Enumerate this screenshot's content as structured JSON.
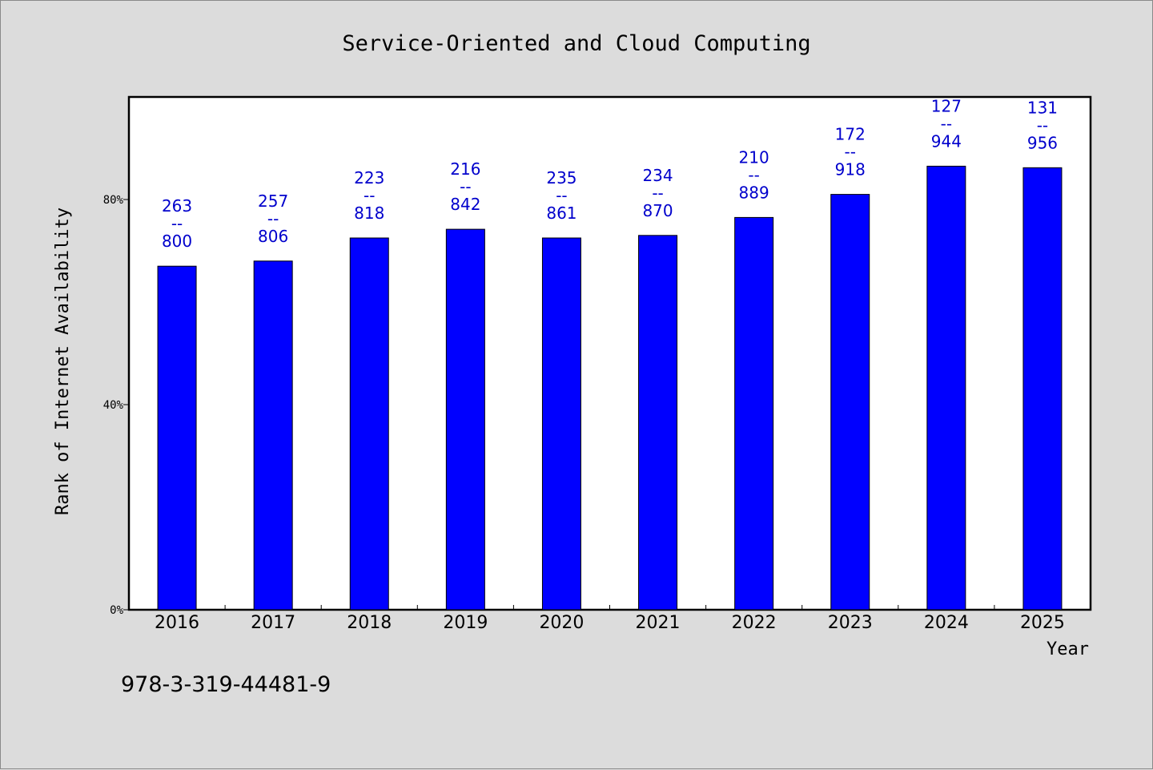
{
  "chart_data": {
    "type": "bar",
    "title": "Service-Oriented and Cloud Computing",
    "xlabel": "Year",
    "ylabel": "Rank of Internet Availability",
    "categories": [
      "2016",
      "2017",
      "2018",
      "2019",
      "2020",
      "2021",
      "2022",
      "2023",
      "2024",
      "2025"
    ],
    "values": [
      67,
      68,
      72.5,
      74.2,
      72.5,
      73,
      76.5,
      81,
      86.5,
      86.2
    ],
    "value_unit": "%",
    "ylim": [
      0,
      100
    ],
    "yticks": [
      {
        "value": 0,
        "label": "0%"
      },
      {
        "value": 40,
        "label": "40%"
      },
      {
        "value": 80,
        "label": "80%"
      }
    ],
    "data_labels": [
      {
        "top": "263",
        "sep": "--",
        "bottom": "800"
      },
      {
        "top": "257",
        "sep": "--",
        "bottom": "806"
      },
      {
        "top": "223",
        "sep": "--",
        "bottom": "818"
      },
      {
        "top": "216",
        "sep": "--",
        "bottom": "842"
      },
      {
        "top": "235",
        "sep": "--",
        "bottom": "861"
      },
      {
        "top": "234",
        "sep": "--",
        "bottom": "870"
      },
      {
        "top": "210",
        "sep": "--",
        "bottom": "889"
      },
      {
        "top": "172",
        "sep": "--",
        "bottom": "918"
      },
      {
        "top": "127",
        "sep": "--",
        "bottom": "944"
      },
      {
        "top": "131",
        "sep": "--",
        "bottom": "956"
      }
    ],
    "bar_color": "#0000ff",
    "label_color": "#0000cc",
    "grid": false,
    "legend": "none"
  },
  "footnote": "978-3-319-44481-9"
}
